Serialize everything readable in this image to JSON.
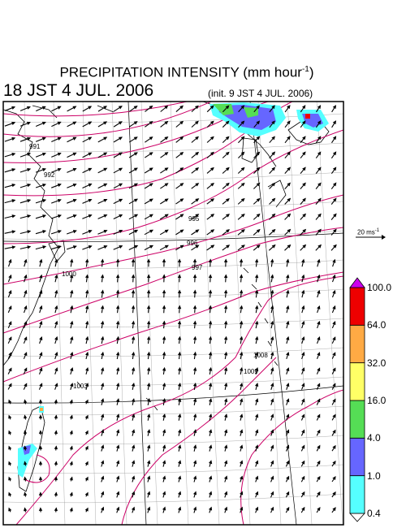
{
  "title": "PRECIPITATION INTENSITY (mm hour",
  "title_unit_exp": "-1",
  "title_close": ")",
  "valid_time": "18 JST 4 JUL. 2006",
  "init_time": "(init. 9 JST 4 JUL. 2006)",
  "vector_reference": {
    "label": "20 ms",
    "exp": "-1",
    "speed": 20
  },
  "isobars": {
    "color": "#cc0066",
    "labels": [
      "991",
      "992",
      "995",
      "996",
      "997",
      "1000",
      "1003",
      "1008",
      "1009"
    ]
  },
  "map_colors": {
    "coast": "#000000",
    "grid": "#000000",
    "arrows": "#000000"
  },
  "colorbar": {
    "levels": [
      "0.4",
      "1.0",
      "4.0",
      "16.0",
      "32.0",
      "64.0",
      "100.0"
    ],
    "colors": [
      "#ffffff",
      "#55ffff",
      "#6666ff",
      "#55dd55",
      "#ffff66",
      "#ffaa44",
      "#ee0000",
      "#cc00ee"
    ]
  },
  "precip_cells": [
    {
      "region": "north-top",
      "colors": [
        "#55ffff",
        "#6666ff",
        "#55dd55"
      ]
    },
    {
      "region": "north-east",
      "colors": [
        "#55ffff",
        "#6666ff",
        "#ee0000"
      ]
    },
    {
      "region": "taiwan",
      "colors": [
        "#55ffff",
        "#6666ff",
        "#ffaa44"
      ]
    }
  ]
}
